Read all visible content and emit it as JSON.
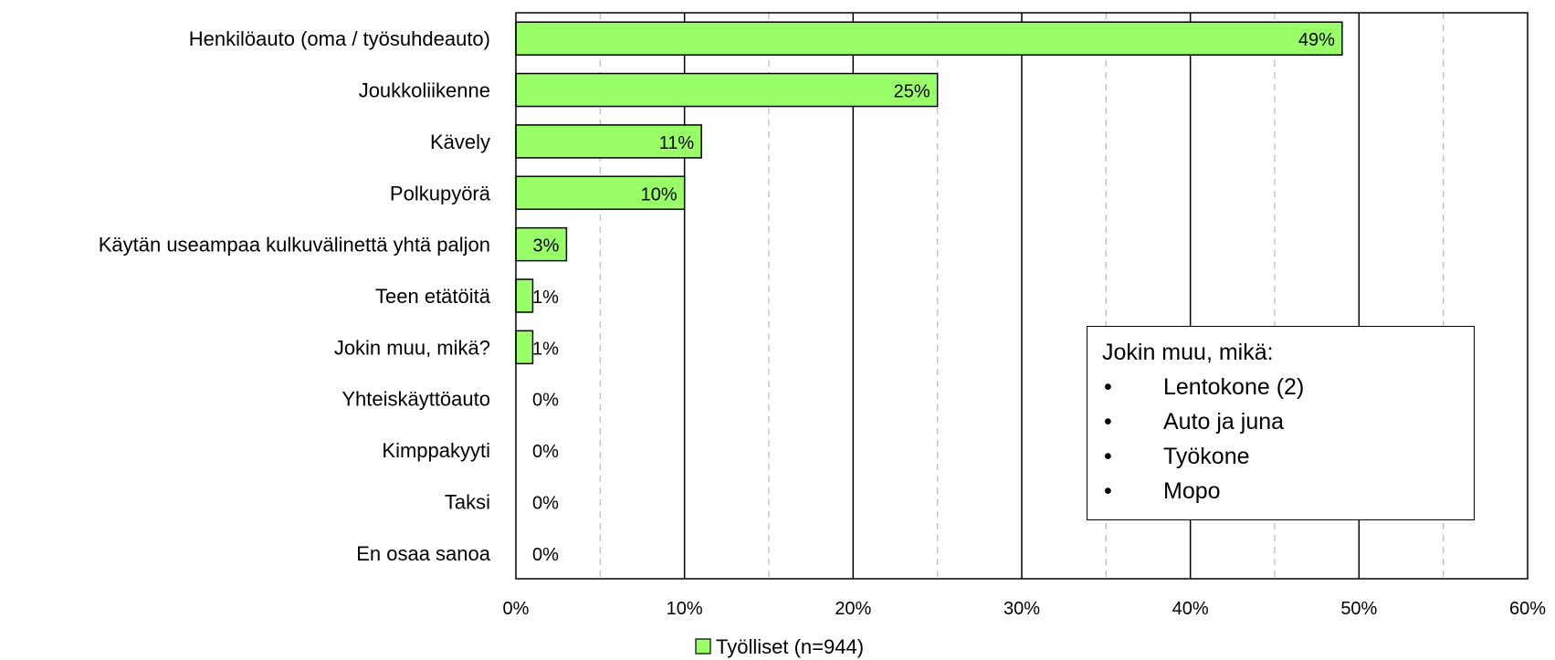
{
  "chart_data": {
    "type": "bar",
    "orientation": "horizontal",
    "categories": [
      "Henkilöauto (oma / työsuhdeauto)",
      "Joukkoliikenne",
      "Kävely",
      "Polkupyörä",
      "Käytän useampaa kulkuvälinettä yhtä paljon",
      "Teen etätöitä",
      "Jokin muu, mikä?",
      "Yhteiskäyttöauto",
      "Kimppakyyti",
      "Taksi",
      "En osaa sanoa"
    ],
    "series": [
      {
        "name": "Työlliset (n=944)",
        "values": [
          49,
          25,
          11,
          10,
          3,
          1,
          1,
          0,
          0,
          0,
          0
        ],
        "data_labels": [
          "49%",
          "25%",
          "11%",
          "10%",
          "3%",
          "1%",
          "1%",
          "0%",
          "0%",
          "0%",
          "0%"
        ]
      }
    ],
    "xlim": [
      0,
      60
    ],
    "xticks": [
      "0%",
      "10%",
      "20%",
      "30%",
      "40%",
      "50%",
      "60%"
    ],
    "grid": true,
    "legend": "bottom",
    "colors": {
      "bar_fill": "#99ff66",
      "bar_stroke": "#000000",
      "major_grid": "#000000",
      "minor_grid": "#bfbfbf"
    }
  },
  "annotation": {
    "title": "Jokin muu, mikä:",
    "items": [
      {
        "bullet": "•",
        "text": "Lentokone (2)"
      },
      {
        "bullet": "•",
        "text": "Auto ja juna"
      },
      {
        "bullet": "•",
        "text": "Työkone"
      },
      {
        "bullet": "•",
        "text": "Mopo"
      }
    ]
  }
}
